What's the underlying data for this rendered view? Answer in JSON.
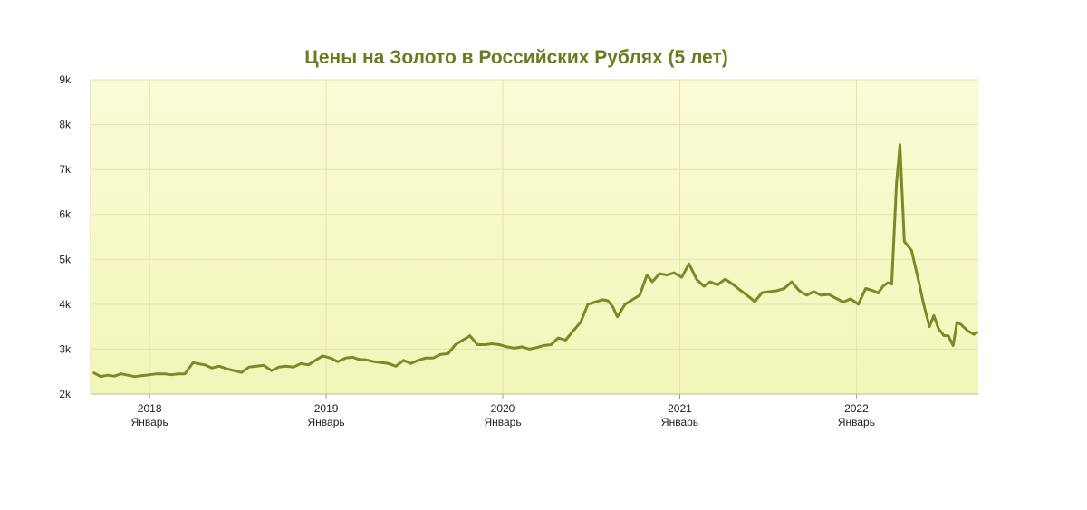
{
  "chart_data": {
    "type": "line",
    "title": "Цены на Золото в Российских Рублях (5 лет)",
    "xlabel": "",
    "ylabel": "",
    "y_ticks": [
      "2k",
      "3k",
      "4k",
      "5k",
      "6k",
      "7k",
      "8k",
      "9k"
    ],
    "ylim": [
      2000,
      9000
    ],
    "xlim": [
      "2017-09-01",
      "2022-09-10"
    ],
    "x_ticks": [
      {
        "date": "2018-01-01",
        "year": "2018",
        "month": "Январь"
      },
      {
        "date": "2019-01-01",
        "year": "2019",
        "month": "Январь"
      },
      {
        "date": "2020-01-01",
        "year": "2020",
        "month": "Январь"
      },
      {
        "date": "2021-01-01",
        "year": "2021",
        "month": "Январь"
      },
      {
        "date": "2022-01-01",
        "year": "2022",
        "month": "Январь"
      }
    ],
    "grid": true,
    "colors": {
      "line": "#7a8a25",
      "plot_bg_top": "#fbfbd6",
      "plot_bg_bottom": "#f2f6b8",
      "grid": "#e3e3b5"
    },
    "series": [
      {
        "x": [
          "2017-09-08",
          "2017-09-22",
          "2017-10-06",
          "2017-10-20",
          "2017-11-03",
          "2017-11-17",
          "2017-12-01",
          "2017-12-15",
          "2018-01-01",
          "2018-01-15",
          "2018-02-01",
          "2018-02-15",
          "2018-03-01",
          "2018-03-15",
          "2018-04-01",
          "2018-04-10",
          "2018-04-25",
          "2018-05-10",
          "2018-05-25",
          "2018-06-10",
          "2018-06-25",
          "2018-07-10",
          "2018-07-25",
          "2018-08-10",
          "2018-08-25",
          "2018-09-10",
          "2018-09-25",
          "2018-10-10",
          "2018-10-25",
          "2018-11-10",
          "2018-11-25",
          "2018-12-10",
          "2018-12-25",
          "2019-01-10",
          "2019-01-25",
          "2019-02-10",
          "2019-02-25",
          "2019-03-10",
          "2019-03-25",
          "2019-04-10",
          "2019-04-25",
          "2019-05-10",
          "2019-05-25",
          "2019-06-10",
          "2019-06-25",
          "2019-07-10",
          "2019-07-25",
          "2019-08-10",
          "2019-08-25",
          "2019-09-10",
          "2019-09-25",
          "2019-10-10",
          "2019-10-25",
          "2019-11-10",
          "2019-11-25",
          "2019-12-10",
          "2019-12-25",
          "2020-01-10",
          "2020-01-25",
          "2020-02-10",
          "2020-02-25",
          "2020-03-10",
          "2020-03-25",
          "2020-04-10",
          "2020-04-25",
          "2020-05-10",
          "2020-05-25",
          "2020-06-10",
          "2020-06-25",
          "2020-07-10",
          "2020-07-25",
          "2020-08-05",
          "2020-08-15",
          "2020-08-25",
          "2020-09-10",
          "2020-09-25",
          "2020-10-10",
          "2020-10-25",
          "2020-11-05",
          "2020-11-20",
          "2020-12-05",
          "2020-12-20",
          "2021-01-05",
          "2021-01-20",
          "2021-02-05",
          "2021-02-20",
          "2021-03-05",
          "2021-03-20",
          "2021-04-05",
          "2021-04-20",
          "2021-05-05",
          "2021-05-20",
          "2021-06-05",
          "2021-06-20",
          "2021-07-05",
          "2021-07-20",
          "2021-08-05",
          "2021-08-20",
          "2021-09-05",
          "2021-09-20",
          "2021-10-05",
          "2021-10-20",
          "2021-11-05",
          "2021-11-20",
          "2021-12-05",
          "2021-12-20",
          "2022-01-05",
          "2022-01-20",
          "2022-02-05",
          "2022-02-15",
          "2022-02-25",
          "2022-03-07",
          "2022-03-15",
          "2022-03-25",
          "2022-04-01",
          "2022-04-10",
          "2022-04-25",
          "2022-05-10",
          "2022-05-20",
          "2022-06-01",
          "2022-06-10",
          "2022-06-20",
          "2022-07-01",
          "2022-07-10",
          "2022-07-20",
          "2022-07-28",
          "2022-08-05",
          "2022-08-20",
          "2022-09-01",
          "2022-09-07"
        ],
        "values": [
          2470,
          2390,
          2420,
          2400,
          2450,
          2420,
          2390,
          2410,
          2430,
          2450,
          2450,
          2430,
          2450,
          2450,
          2700,
          2680,
          2650,
          2580,
          2620,
          2560,
          2520,
          2480,
          2600,
          2620,
          2640,
          2520,
          2600,
          2620,
          2600,
          2680,
          2650,
          2750,
          2850,
          2800,
          2720,
          2800,
          2820,
          2770,
          2760,
          2720,
          2700,
          2680,
          2620,
          2750,
          2680,
          2750,
          2800,
          2800,
          2880,
          2900,
          3100,
          3200,
          3300,
          3100,
          3100,
          3120,
          3100,
          3050,
          3020,
          3050,
          3000,
          3030,
          3080,
          3100,
          3250,
          3200,
          3400,
          3600,
          4000,
          4050,
          4100,
          4080,
          3950,
          3720,
          4000,
          4100,
          4200,
          4650,
          4500,
          4680,
          4650,
          4700,
          4600,
          4900,
          4550,
          4400,
          4500,
          4430,
          4560,
          4450,
          4320,
          4200,
          4060,
          4260,
          4280,
          4300,
          4350,
          4500,
          4300,
          4200,
          4280,
          4200,
          4220,
          4130,
          4050,
          4120,
          4000,
          4350,
          4300,
          4250,
          4400,
          4480,
          4450,
          6700,
          7550,
          5400,
          5200,
          4500,
          4000,
          3500,
          3750,
          3450,
          3300,
          3300,
          3080,
          3600,
          3550,
          3400,
          3330,
          3370
        ]
      }
    ]
  }
}
